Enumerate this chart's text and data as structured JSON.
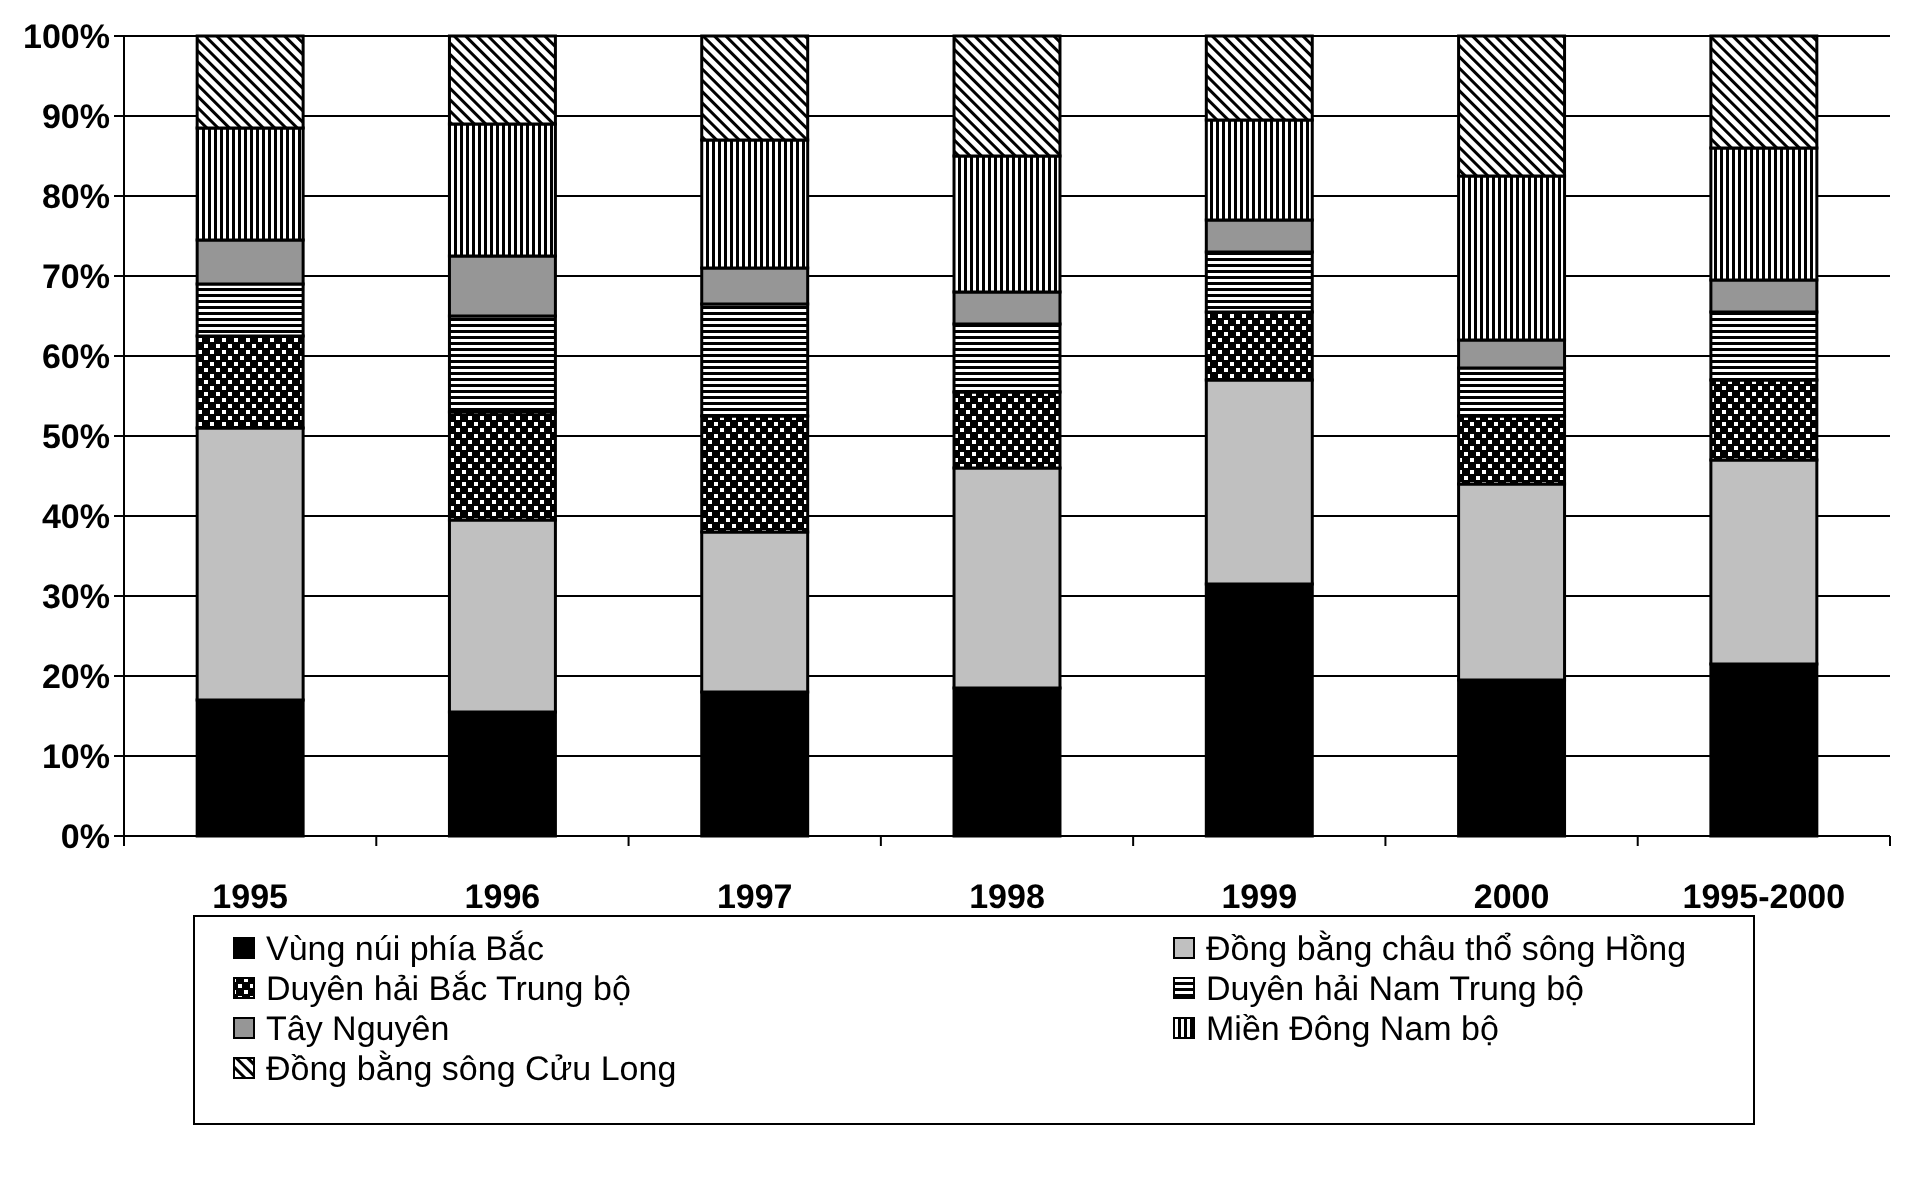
{
  "chart_data": {
    "type": "bar",
    "stacked": true,
    "categories": [
      "1995",
      "1996",
      "1997",
      "1998",
      "1999",
      "2000",
      "1995-2000"
    ],
    "series": [
      {
        "name": "Vùng núi phía Bắc",
        "color": "#000000",
        "values": [
          17,
          15.5,
          18,
          18.5,
          31.5,
          19.5,
          21.5
        ]
      },
      {
        "name": "Đồng bằng châu thổ sông Hồng",
        "color": "#c0c0c0",
        "values": [
          34,
          24,
          20,
          27.5,
          25.5,
          24.5,
          25.5
        ]
      },
      {
        "name": "Duyên hải Bắc Trung bộ",
        "color": "#000000",
        "values": [
          11.5,
          13.5,
          14.5,
          9.5,
          8.5,
          8.5,
          10
        ]
      },
      {
        "name": "Duyên hải Nam Trung bộ",
        "color": "#000000",
        "values": [
          6.5,
          12,
          14,
          8.5,
          7.5,
          6,
          8.5
        ]
      },
      {
        "name": "Tây Nguyên",
        "color": "#969696",
        "values": [
          5.5,
          7.5,
          4.5,
          4,
          4,
          3.5,
          4
        ]
      },
      {
        "name": "Miền Đông Nam bộ",
        "color": "#000000",
        "values": [
          14,
          16.5,
          16,
          17,
          12.5,
          20.5,
          16.5
        ]
      },
      {
        "name": "Đồng bằng sông Cửu Long",
        "color": "#000000",
        "values": [
          11.5,
          11,
          13,
          15,
          10.5,
          17.5,
          14
        ]
      }
    ],
    "ylim": [
      0,
      100
    ],
    "yticks": [
      {
        "value": 0,
        "label": "0%"
      },
      {
        "value": 10,
        "label": "10%"
      },
      {
        "value": 20,
        "label": "20%"
      },
      {
        "value": 30,
        "label": "30%"
      },
      {
        "value": 40,
        "label": "40%"
      },
      {
        "value": 50,
        "label": "50%"
      },
      {
        "value": 60,
        "label": "60%"
      },
      {
        "value": 70,
        "label": "70%"
      },
      {
        "value": 80,
        "label": "80%"
      },
      {
        "value": 90,
        "label": "90%"
      },
      {
        "value": 100,
        "label": "100%"
      }
    ],
    "grid": "y",
    "legend": "bottom"
  }
}
